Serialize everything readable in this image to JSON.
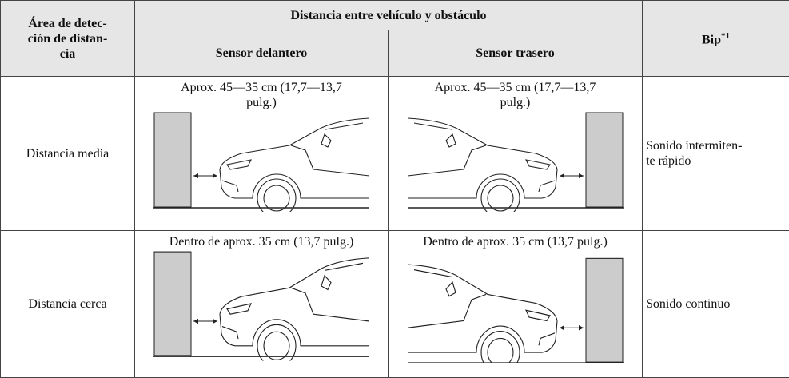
{
  "table": {
    "header": {
      "area": [
        "Área de detec-",
        "ción de distan-",
        "cia"
      ],
      "distance": "Distancia entre vehículo y obstáculo",
      "front": "Sensor delantero",
      "rear": "Sensor trasero",
      "beep": "Bip",
      "beep_note": "*1"
    },
    "rows": [
      {
        "area": "Distancia media",
        "front": [
          "Aprox. 45—35 cm (17,7—13,7",
          "pulg.)"
        ],
        "rear": [
          "Aprox. 45—35 cm (17,7—13,7",
          "pulg.)"
        ],
        "beep": [
          "Sonido intermiten-",
          "te rápido"
        ]
      },
      {
        "area": "Distancia cerca",
        "front": "Dentro de aprox. 35 cm (13,7 pulg.)",
        "rear": "Dentro de aprox. 35 cm (13,7 pulg.)",
        "beep": "Sonido continuo"
      }
    ]
  }
}
